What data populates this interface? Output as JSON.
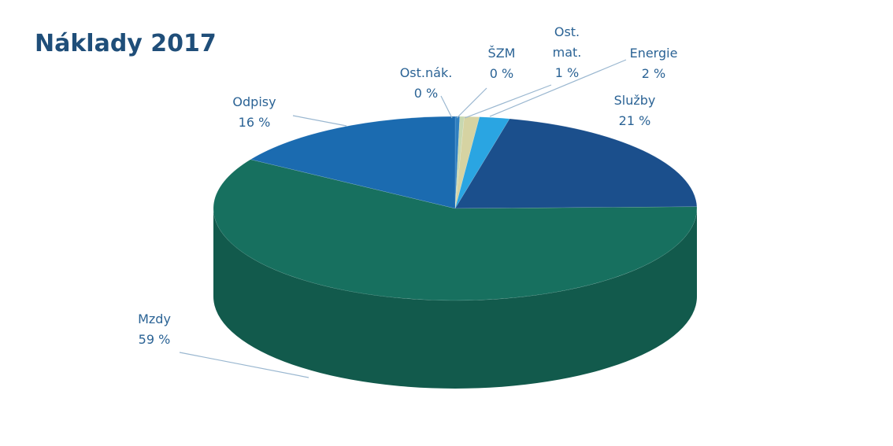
{
  "chart_data": {
    "type": "pie3d",
    "title": "Náklady 2017",
    "categories": [
      "Ost.nák.",
      "ŠZM",
      "Ost. mat.",
      "Energie",
      "Služby",
      "Mzdy",
      "Odpisy"
    ],
    "values": [
      0.3,
      0.3,
      1,
      2,
      21,
      59,
      16
    ],
    "value_labels": [
      "0 %",
      "0 %",
      "1 %",
      "2 %",
      "21 %",
      "59 %",
      "16 %"
    ],
    "colors": [
      "#2f7fc0",
      "#c8d8b0",
      "#d6d3a2",
      "#2aa5e2",
      "#1b4f8c",
      "#17705f",
      "#1b6bb0"
    ]
  }
}
